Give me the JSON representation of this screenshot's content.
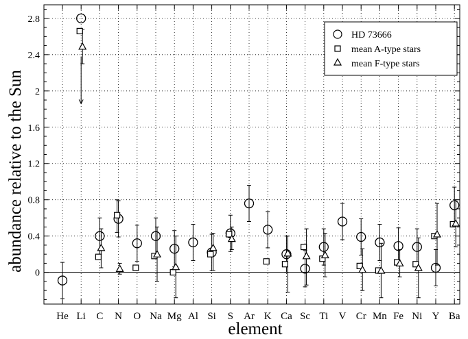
{
  "chart_data": {
    "type": "scatter",
    "xlabel": "element",
    "ylabel": "abundance relative to the Sun",
    "categories": [
      "He",
      "Li",
      "C",
      "N",
      "O",
      "Na",
      "Mg",
      "Al",
      "Si",
      "S",
      "Ar",
      "K",
      "Ca",
      "Sc",
      "Ti",
      "V",
      "Cr",
      "Mn",
      "Fe",
      "Ni",
      "Y",
      "Ba"
    ],
    "ylim": [
      -0.35,
      2.95
    ],
    "yticks": [
      "2.8",
      "2.4",
      "2",
      "1.6",
      "1.2",
      "0.8",
      "0.4",
      "0"
    ],
    "ytick_values": [
      2.8,
      2.4,
      2.0,
      1.6,
      1.2,
      0.8,
      0.4,
      0.0
    ],
    "grid": true,
    "zero_line": true,
    "legend": {
      "placement": "top-right"
    },
    "series": [
      {
        "name": "HD 73666",
        "marker": "circle",
        "points": [
          {
            "x": "He",
            "y": -0.09,
            "lo": -0.29,
            "hi": 0.11
          },
          {
            "x": "Li",
            "y": 2.8
          },
          {
            "x": "C",
            "y": 0.4,
            "lo": 0.2,
            "hi": 0.6
          },
          {
            "x": "N",
            "y": 0.59,
            "lo": 0.39,
            "hi": 0.79
          },
          {
            "x": "O",
            "y": 0.32,
            "lo": 0.12,
            "hi": 0.52
          },
          {
            "x": "Na",
            "y": 0.4,
            "lo": 0.2,
            "hi": 0.6
          },
          {
            "x": "Mg",
            "y": 0.26,
            "lo": 0.06,
            "hi": 0.46
          },
          {
            "x": "Al",
            "y": 0.33,
            "lo": 0.13,
            "hi": 0.53
          },
          {
            "x": "Si",
            "y": 0.22,
            "lo": 0.02,
            "hi": 0.42
          },
          {
            "x": "S",
            "y": 0.43,
            "lo": 0.23,
            "hi": 0.63
          },
          {
            "x": "Ar",
            "y": 0.76,
            "lo": 0.56,
            "hi": 0.96
          },
          {
            "x": "K",
            "y": 0.47,
            "lo": 0.27,
            "hi": 0.67
          },
          {
            "x": "Ca",
            "y": 0.2,
            "lo": 0.0,
            "hi": 0.4
          },
          {
            "x": "Sc",
            "y": 0.04,
            "lo": -0.16,
            "hi": 0.24
          },
          {
            "x": "Ti",
            "y": 0.28,
            "lo": 0.08,
            "hi": 0.48
          },
          {
            "x": "V",
            "y": 0.56,
            "lo": 0.36,
            "hi": 0.76
          },
          {
            "x": "Cr",
            "y": 0.39,
            "lo": 0.19,
            "hi": 0.59
          },
          {
            "x": "Mn",
            "y": 0.33,
            "lo": 0.13,
            "hi": 0.53
          },
          {
            "x": "Fe",
            "y": 0.29,
            "lo": 0.09,
            "hi": 0.49
          },
          {
            "x": "Ni",
            "y": 0.28,
            "lo": 0.08,
            "hi": 0.48
          },
          {
            "x": "Y",
            "y": 0.05,
            "lo": -0.15,
            "hi": 0.25
          },
          {
            "x": "Ba",
            "y": 0.74,
            "lo": 0.54,
            "hi": 0.94
          }
        ]
      },
      {
        "name": "mean A-type stars",
        "marker": "square",
        "points": [
          {
            "x": "Li",
            "y": 2.66
          },
          {
            "x": "C",
            "y": 0.17
          },
          {
            "x": "N",
            "y": 0.63,
            "lo": 0.44,
            "hi": 0.8
          },
          {
            "x": "O",
            "y": 0.05
          },
          {
            "x": "Na",
            "y": 0.18
          },
          {
            "x": "Mg",
            "y": 0.0
          },
          {
            "x": "Si",
            "y": 0.2
          },
          {
            "x": "S",
            "y": 0.42
          },
          {
            "x": "K",
            "y": 0.12
          },
          {
            "x": "Ca",
            "y": 0.09
          },
          {
            "x": "Sc",
            "y": 0.28
          },
          {
            "x": "Ti",
            "y": 0.15
          },
          {
            "x": "Cr",
            "y": 0.07
          },
          {
            "x": "Mn",
            "y": 0.02
          },
          {
            "x": "Fe",
            "y": 0.11
          },
          {
            "x": "Ni",
            "y": 0.09
          },
          {
            "x": "Y",
            "y": 0.4
          },
          {
            "x": "Ba",
            "y": 0.53
          }
        ]
      },
      {
        "name": "mean F-type stars",
        "marker": "triangle",
        "points": [
          {
            "x": "Li",
            "y": 2.49,
            "lo": 2.3,
            "hi": 2.68
          },
          {
            "x": "C",
            "y": 0.27,
            "lo": 0.05,
            "hi": 0.48
          },
          {
            "x": "N",
            "y": 0.04,
            "lo": -0.02,
            "hi": 0.1
          },
          {
            "x": "Na",
            "y": 0.2,
            "lo": -0.1,
            "hi": 0.5
          },
          {
            "x": "Mg",
            "y": 0.06,
            "lo": -0.28,
            "hi": 0.4
          },
          {
            "x": "Si",
            "y": 0.27,
            "lo": 0.02,
            "hi": 0.43
          },
          {
            "x": "S",
            "y": 0.37,
            "lo": 0.25,
            "hi": 0.5
          },
          {
            "x": "Ca",
            "y": 0.21,
            "lo": -0.22,
            "hi": 0.4
          },
          {
            "x": "Sc",
            "y": 0.18,
            "lo": -0.14,
            "hi": 0.48
          },
          {
            "x": "Ti",
            "y": 0.19,
            "lo": -0.05,
            "hi": 0.43
          },
          {
            "x": "Cr",
            "y": 0.03,
            "lo": -0.2,
            "hi": 0.26
          },
          {
            "x": "Mn",
            "y": 0.02,
            "lo": -0.28,
            "hi": 0.32
          },
          {
            "x": "Fe",
            "y": 0.1,
            "lo": -0.05,
            "hi": 0.25
          },
          {
            "x": "Ni",
            "y": 0.05,
            "lo": -0.28,
            "hi": 0.38
          },
          {
            "x": "Y",
            "y": 0.42,
            "lo": 0.08,
            "hi": 0.76
          },
          {
            "x": "Ba",
            "y": 0.54,
            "lo": 0.28,
            "hi": 0.8
          }
        ]
      }
    ],
    "annotations": [
      {
        "type": "arrow",
        "x": "Li",
        "from": 2.38,
        "to": 1.86
      }
    ]
  }
}
